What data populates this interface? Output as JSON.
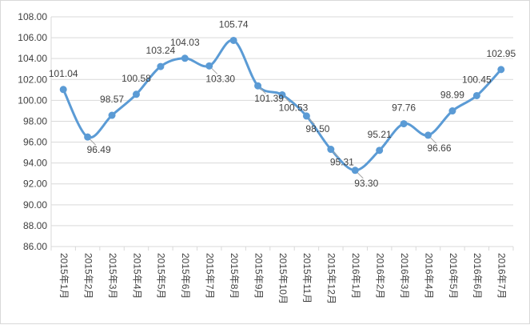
{
  "chart_data": {
    "type": "line",
    "title": "",
    "xlabel": "",
    "ylabel": "",
    "ylim": [
      86,
      108
    ],
    "y_ticks": [
      "86.00",
      "88.00",
      "90.00",
      "92.00",
      "94.00",
      "96.00",
      "98.00",
      "100.00",
      "102.00",
      "104.00",
      "106.00",
      "108.00"
    ],
    "grid": "horizontal",
    "legend": "none",
    "smooth": true,
    "line_color": "#5b9bd5",
    "grid_color": "#d9d9d9",
    "categories": [
      "2015年1月",
      "2015年2月",
      "2015年3月",
      "2015年4月",
      "2015年5月",
      "2015年6月",
      "2015年7月",
      "2015年8月",
      "2015年9月",
      "2015年10月",
      "2015年11月",
      "2015年12月",
      "2016年1月",
      "2016年2月",
      "2016年3月",
      "2016年4月",
      "2016年5月",
      "2016年6月",
      "2016年7月"
    ],
    "values": [
      101.04,
      96.49,
      98.57,
      100.58,
      103.24,
      104.03,
      103.3,
      105.74,
      101.39,
      100.53,
      98.5,
      95.31,
      93.3,
      95.21,
      97.76,
      96.66,
      98.99,
      100.45,
      102.95
    ],
    "value_labels": [
      "101.04",
      "96.49",
      "98.57",
      "100.58",
      "103.24",
      "104.03",
      "103.30",
      "105.74",
      "101.39",
      "100.53",
      "98.50",
      "95.31",
      "93.30",
      "95.21",
      "97.76",
      "96.66",
      "98.99",
      "100.45",
      "102.95"
    ]
  }
}
